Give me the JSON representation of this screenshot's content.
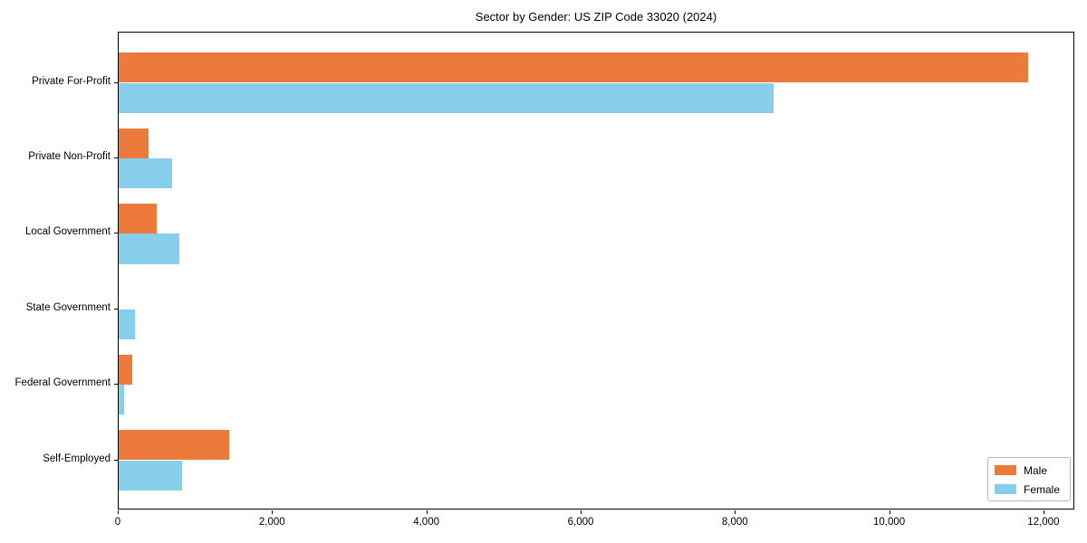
{
  "figure": {
    "title": "Sector by Gender: US ZIP Code 33020 (2024)"
  },
  "chart_data": {
    "type": "bar",
    "orientation": "horizontal",
    "title": "Sector by Gender: US ZIP Code 33020 (2024)",
    "categories": [
      "Private For-Profit",
      "Private Non-Profit",
      "Local Government",
      "State Government",
      "Federal Government",
      "Self-Employed"
    ],
    "series": [
      {
        "name": "Male",
        "color": "#ec7a3a",
        "values": [
          11790,
          390,
          490,
          0,
          180,
          1430
        ]
      },
      {
        "name": "Female",
        "color": "#87ceeb",
        "values": [
          8490,
          690,
          790,
          210,
          70,
          820
        ]
      }
    ],
    "xlabel": "",
    "ylabel": "",
    "xlim": [
      0,
      12400
    ],
    "xticks": [
      0,
      2000,
      4000,
      6000,
      8000,
      10000,
      12000
    ],
    "xtick_labels": [
      "0",
      "2,000",
      "4,000",
      "6,000",
      "8,000",
      "10,000",
      "12,000"
    ],
    "bar_height_fraction": 0.4,
    "grid": false,
    "legend": {
      "position": "lower-right"
    }
  }
}
